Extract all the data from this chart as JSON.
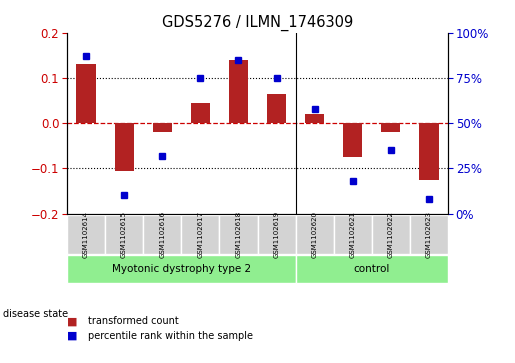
{
  "title": "GDS5276 / ILMN_1746309",
  "samples": [
    "GSM1102614",
    "GSM1102615",
    "GSM1102616",
    "GSM1102617",
    "GSM1102618",
    "GSM1102619",
    "GSM1102620",
    "GSM1102621",
    "GSM1102622",
    "GSM1102623"
  ],
  "red_values": [
    0.13,
    -0.105,
    -0.02,
    0.045,
    0.14,
    0.065,
    0.02,
    -0.075,
    -0.02,
    -0.125
  ],
  "blue_values": [
    87,
    10,
    32,
    75,
    85,
    75,
    58,
    18,
    35,
    8
  ],
  "group_boundary": 6,
  "group_labels": [
    "Myotonic dystrophy type 2",
    "control"
  ],
  "group_color": "#90EE90",
  "ylim_left": [
    -0.2,
    0.2
  ],
  "ylim_right": [
    0,
    100
  ],
  "yticks_left": [
    -0.2,
    -0.1,
    0.0,
    0.1,
    0.2
  ],
  "yticks_right": [
    0,
    25,
    50,
    75,
    100
  ],
  "red_color": "#B22222",
  "blue_color": "#0000CD",
  "bar_width": 0.5,
  "dot_size": 5,
  "legend_red": "transformed count",
  "legend_blue": "percentile rank within the sample",
  "disease_state_label": "disease state",
  "label_color_left": "#CC0000",
  "label_color_right": "#0000CD",
  "box_color": "#D3D3D3",
  "separator_color": "black",
  "hline_color_zero": "#CC0000",
  "hline_color_dotted": "black",
  "figsize": [
    5.15,
    3.63
  ],
  "dpi": 100
}
